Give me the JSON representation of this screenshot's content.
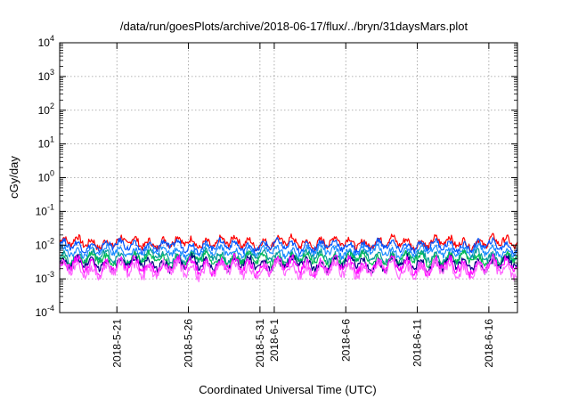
{
  "chart_data": {
    "type": "line",
    "title": "/data/run/goesPlots/archive/2018-06-17/flux/../bryn/31daysMars.plot",
    "xlabel": "Coordinated Universal Time (UTC)",
    "ylabel": "cGy/day",
    "y_scale": "log",
    "ylim": [
      0.0001,
      10000
    ],
    "xlim": [
      "2018-05-17",
      "2018-06-18"
    ],
    "grid": true,
    "legend": "none",
    "y_ticks": [
      {
        "base": "10",
        "exp": "-4"
      },
      {
        "base": "10",
        "exp": "-3"
      },
      {
        "base": "10",
        "exp": "-2"
      },
      {
        "base": "10",
        "exp": "-1"
      },
      {
        "base": "10",
        "exp": "0"
      },
      {
        "base": "10",
        "exp": "1"
      },
      {
        "base": "10",
        "exp": "2"
      },
      {
        "base": "10",
        "exp": "3"
      },
      {
        "base": "10",
        "exp": "4"
      }
    ],
    "x_ticks": [
      {
        "date": "2018-05-21",
        "label": "2018-5-21"
      },
      {
        "date": "2018-05-26",
        "label": "2018-5-26"
      },
      {
        "date": "2018-05-31",
        "label": "2018-5-31"
      },
      {
        "date": "2018-06-01",
        "label": "2018-6-1"
      },
      {
        "date": "2018-06-06",
        "label": "2018-6-6"
      },
      {
        "date": "2018-06-11",
        "label": "2018-6-11"
      },
      {
        "date": "2018-06-16",
        "label": "2018-6-16"
      }
    ],
    "series": [
      {
        "color": "#ff0000",
        "approx_level": 0.012,
        "amplitude": 0.22
      },
      {
        "color": "#0055ff",
        "approx_level": 0.0095,
        "amplitude": 0.2
      },
      {
        "color": "#1a8cff",
        "approx_level": 0.0065,
        "amplitude": 0.2
      },
      {
        "color": "#009999",
        "approx_level": 0.0045,
        "amplitude": 0.22
      },
      {
        "color": "#00bb55",
        "approx_level": 0.0038,
        "amplitude": 0.22
      },
      {
        "color": "#000080",
        "approx_level": 0.0028,
        "amplitude": 0.25
      },
      {
        "color": "#ff00ff",
        "approx_level": 0.0024,
        "amplitude": 0.3
      },
      {
        "color": "#ff66ff",
        "approx_level": 0.0019,
        "amplitude": 0.3
      }
    ]
  }
}
